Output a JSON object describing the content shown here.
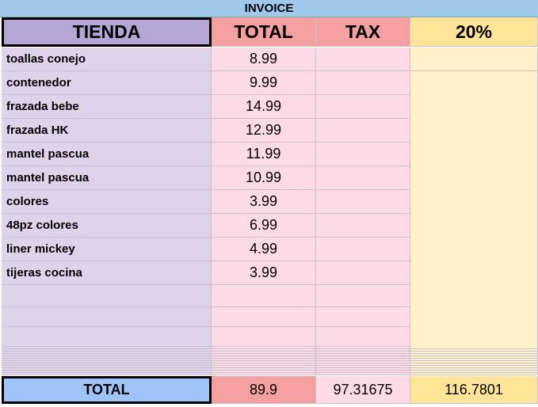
{
  "title": "INVOICE",
  "header": [
    "TIENDA",
    "TOTAL",
    "TAX",
    "20%"
  ],
  "rows": [
    [
      "toallas conejo",
      8.99
    ],
    [
      "contenedor",
      9.99
    ],
    [
      "frazada bebe",
      14.99
    ],
    [
      "frazada HK",
      12.99
    ],
    [
      "mantel pascua",
      11.99
    ],
    [
      "mantel pascua",
      10.99
    ],
    [
      "colores",
      3.99
    ],
    [
      "48pz colores",
      6.99
    ],
    [
      "liner mickey",
      4.99
    ],
    [
      "tijeras cocina",
      3.99
    ]
  ],
  "footer": [
    "TOTAL",
    89.9,
    97.31675,
    116.7801
  ]
}
